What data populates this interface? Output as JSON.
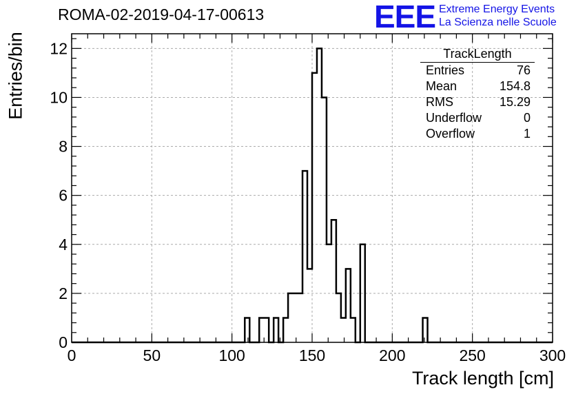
{
  "title": "ROMA-02-2019-04-17-00613",
  "logo": {
    "mark": "EEE",
    "line1": "Extreme Energy Events",
    "line2": "La Scienza nelle Scuole"
  },
  "stats_box": {
    "title": "TrackLength",
    "rows": [
      {
        "label": "Entries",
        "value": "76"
      },
      {
        "label": "Mean",
        "value": "154.8"
      },
      {
        "label": "RMS",
        "value": "15.29"
      },
      {
        "label": "Underflow",
        "value": "0"
      },
      {
        "label": "Overflow",
        "value": "1"
      }
    ]
  },
  "chart_data": {
    "type": "histogram",
    "title": "ROMA-02-2019-04-17-00613",
    "xlabel": "Track length [cm]",
    "ylabel": "Entries/bin",
    "xlim": [
      0,
      300
    ],
    "ylim": [
      0,
      12.6
    ],
    "xticks": [
      0,
      50,
      100,
      150,
      200,
      250,
      300
    ],
    "yticks": [
      0,
      2,
      4,
      6,
      8,
      10,
      12
    ],
    "grid": true,
    "bin_width": 3,
    "series": [
      {
        "bins": [
          {
            "x": 108,
            "count": 1
          },
          {
            "x": 117,
            "count": 1
          },
          {
            "x": 120,
            "count": 1
          },
          {
            "x": 126,
            "count": 1
          },
          {
            "x": 132,
            "count": 1
          },
          {
            "x": 135,
            "count": 2
          },
          {
            "x": 138,
            "count": 2
          },
          {
            "x": 141,
            "count": 2
          },
          {
            "x": 144,
            "count": 7
          },
          {
            "x": 147,
            "count": 3
          },
          {
            "x": 150,
            "count": 11
          },
          {
            "x": 153,
            "count": 12
          },
          {
            "x": 156,
            "count": 10
          },
          {
            "x": 159,
            "count": 4
          },
          {
            "x": 162,
            "count": 5
          },
          {
            "x": 165,
            "count": 2
          },
          {
            "x": 168,
            "count": 1
          },
          {
            "x": 171,
            "count": 3
          },
          {
            "x": 174,
            "count": 1
          },
          {
            "x": 180,
            "count": 4
          },
          {
            "x": 219,
            "count": 1
          }
        ]
      }
    ]
  }
}
